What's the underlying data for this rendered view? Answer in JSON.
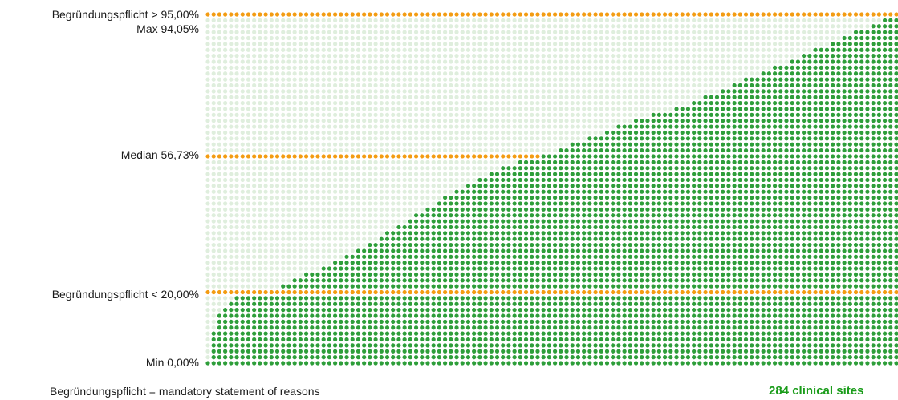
{
  "chart_data": {
    "type": "scatter",
    "subtype": "dot-matrix",
    "y_range_percent": [
      0,
      95
    ],
    "site_count": 284,
    "reference_lines": [
      {
        "label": "Begründungspflicht > 95,00%",
        "value": 95.0
      },
      {
        "label": "Max 94,05%",
        "value": 94.05
      },
      {
        "label": "Median 56,73%",
        "value": 56.73
      },
      {
        "label": "Begründungspflicht < 20,00%",
        "value": 20.0
      },
      {
        "label": "Min 0,00%",
        "value": 0.0
      }
    ],
    "min": 0.0,
    "median": 56.73,
    "max": 94.05,
    "threshold_low": 20.0,
    "threshold_high": 95.0,
    "cutoff_profile": [
      [
        0.0,
        0.0
      ],
      [
        0.01,
        10.0
      ],
      [
        0.03,
        16.5
      ],
      [
        0.1,
        20.0
      ],
      [
        0.12,
        21.5
      ],
      [
        0.2,
        28.0
      ],
      [
        0.28,
        37.0
      ],
      [
        0.35,
        45.0
      ],
      [
        0.42,
        52.0
      ],
      [
        0.5,
        56.73
      ],
      [
        0.6,
        64.0
      ],
      [
        0.7,
        70.0
      ],
      [
        0.8,
        78.0
      ],
      [
        0.9,
        86.0
      ],
      [
        0.96,
        91.0
      ],
      [
        1.0,
        94.05
      ]
    ],
    "colors": {
      "site_dot": "#2e9e3a",
      "empty_dot": "#dfeedd",
      "reference_line": "#f39c12",
      "count_text": "#1a9c1a"
    }
  },
  "labels": {
    "thr_high": "Begründungspflicht > 95,00%",
    "max": "Max 94,05%",
    "median": "Median 56,73%",
    "thr_low": "Begründungspflicht < 20,00%",
    "min": "Min 0,00%"
  },
  "footnote": "Begründungspflicht = mandatory statement of reasons",
  "count_label": "284 clinical sites"
}
